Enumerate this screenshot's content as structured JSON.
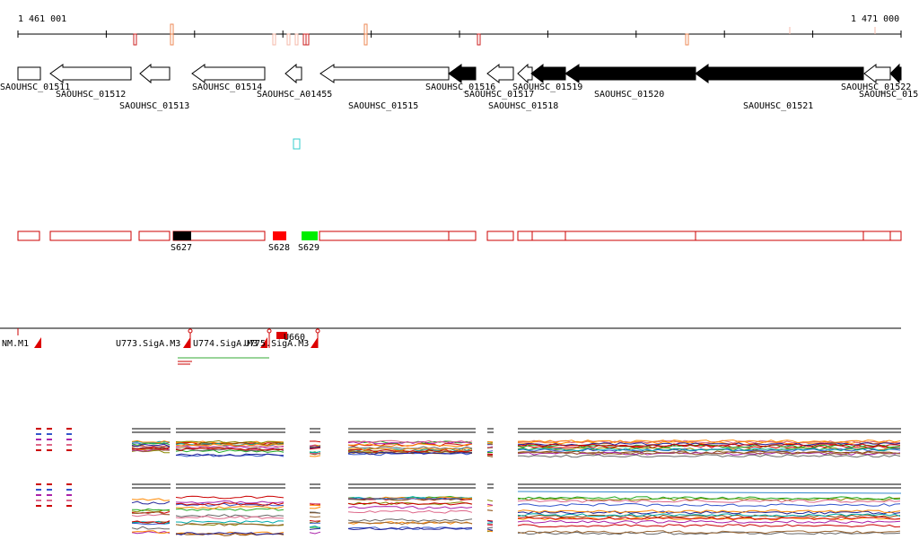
{
  "ruler": {
    "start_label": "1 461 001",
    "end_label": "1 471 000"
  },
  "genes": [
    {
      "label": "SAOUHSC_01511",
      "strand": "+",
      "filled": false
    },
    {
      "label": "SAOUHSC_01512",
      "strand": "-",
      "filled": false
    },
    {
      "label": "SAOUHSC_01513",
      "strand": "-",
      "filled": false
    },
    {
      "label": "SAOUHSC_01514",
      "strand": "-",
      "filled": false
    },
    {
      "label": "SAOUHSC_A01455",
      "strand": "-",
      "filled": false
    },
    {
      "label": "SAOUHSC_01515",
      "strand": "-",
      "filled": false
    },
    {
      "label": "SAOUHSC_01516",
      "strand": "-",
      "filled": true
    },
    {
      "label": "SAOUHSC_01517",
      "strand": "-",
      "filled": false
    },
    {
      "label": "SAOUHSC_01518",
      "strand": "-",
      "filled": false
    },
    {
      "label": "SAOUHSC_01519",
      "strand": "-",
      "filled": true
    },
    {
      "label": "SAOUHSC_01520",
      "strand": "-",
      "filled": true
    },
    {
      "label": "SAOUHSC_01521",
      "strand": "-",
      "filled": true
    },
    {
      "label": "SAOUHSC_01522",
      "strand": "-",
      "filled": false
    },
    {
      "label": "SAOUHSC_015",
      "strand": "-",
      "filled": true
    }
  ],
  "segments": [
    {
      "label": "S627",
      "color": "#000000"
    },
    {
      "label": "S628",
      "color": "#ff0000"
    },
    {
      "label": "S629",
      "color": "#00ee00"
    }
  ],
  "operons": [
    {
      "label": "NM.M1"
    },
    {
      "label": "U773.SigA.M3"
    },
    {
      "label": "U774.SigA.M3"
    },
    {
      "label": "U775.SigA.M3"
    },
    {
      "label": "U660"
    }
  ],
  "colors": {
    "segment_outline": "#cc0000",
    "marker_red": "#cc2222",
    "marker_orange": "#ee8855",
    "cyan_box": "#33cccc",
    "operon_green": "#33aa33"
  }
}
